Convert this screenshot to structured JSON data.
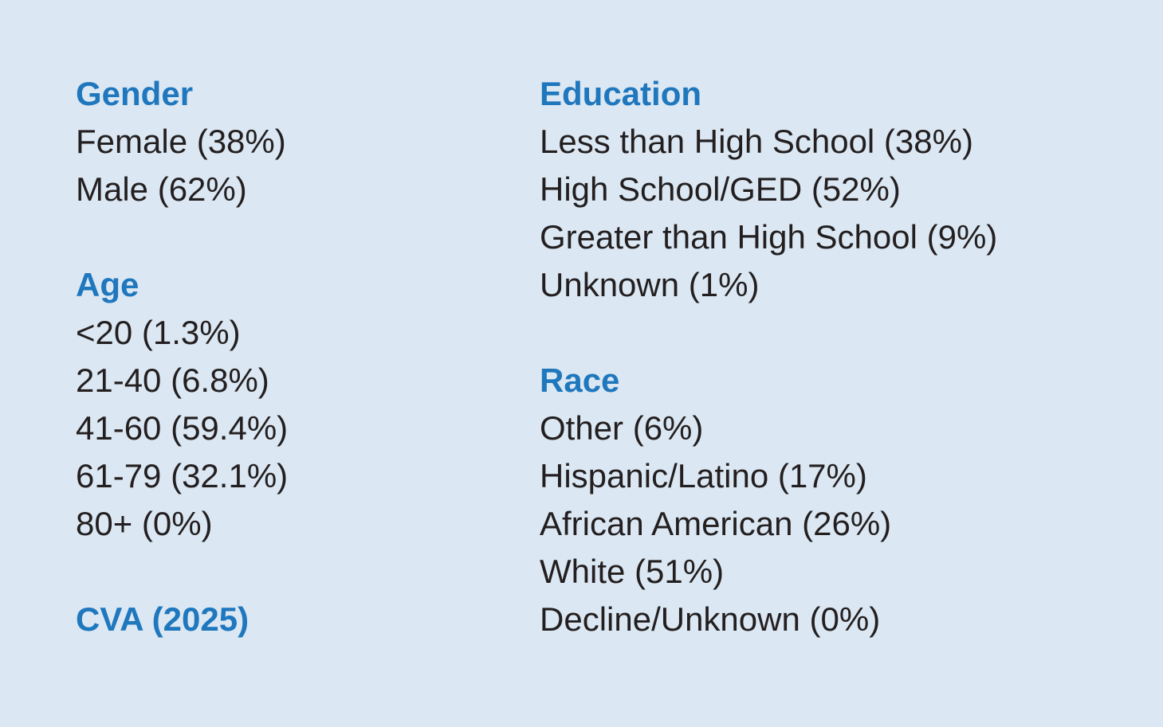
{
  "theme": {
    "background_color": "#dbe7f2",
    "heading_color": "#1f77bd",
    "text_color": "#231f20"
  },
  "sections": {
    "gender": {
      "title": "Gender",
      "items": [
        "Female (38%)",
        "Male (62%)"
      ]
    },
    "age": {
      "title": "Age",
      "items": [
        "<20 (1.3%)",
        "21-40 (6.8%)",
        "41-60 (59.4%)",
        "61-79 (32.1%)",
        "80+ (0%)"
      ]
    },
    "education": {
      "title": "Education",
      "items": [
        "Less than High School (38%)",
        "High School/GED (52%)",
        "Greater than High School (9%)",
        "Unknown (1%)"
      ]
    },
    "race": {
      "title": "Race",
      "items": [
        "Other (6%)",
        "Hispanic/Latino (17%)",
        "African American (26%)",
        "White (51%)",
        "Decline/Unknown (0%)"
      ]
    }
  },
  "footer": {
    "label": "CVA (2025)"
  }
}
